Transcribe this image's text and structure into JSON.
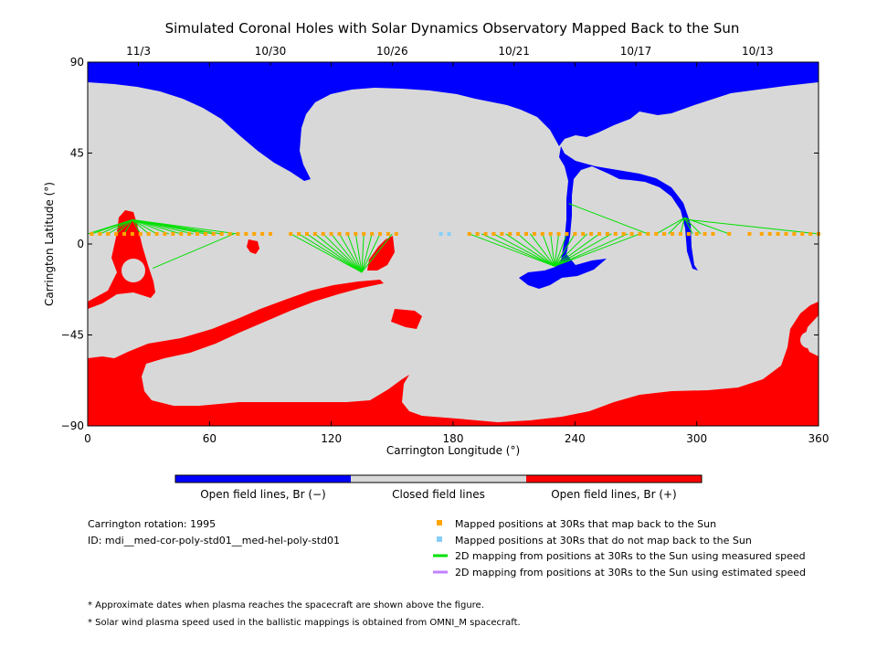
{
  "chart_data": {
    "type": "map",
    "title": "Simulated Coronal Holes with Solar Dynamics Observatory Mapped Back to the Sun",
    "xlabel": "Carrington Longitude (°)",
    "ylabel": "Carrington Latitude (°)",
    "xlim": [
      0,
      360
    ],
    "ylim": [
      -90,
      90
    ],
    "xticks": [
      0,
      60,
      120,
      180,
      240,
      300,
      360
    ],
    "yticks": [
      90,
      45,
      0,
      -45,
      -90
    ],
    "date_ticks": [
      {
        "label": "11/3",
        "lon": 25
      },
      {
        "label": "10/30",
        "lon": 90
      },
      {
        "label": "10/26",
        "lon": 150
      },
      {
        "label": "10/21",
        "lon": 210
      },
      {
        "label": "10/17",
        "lon": 270
      },
      {
        "label": "10/13",
        "lon": 330
      }
    ],
    "colorbar": {
      "colors": [
        "#0000ff",
        "#d8d8d8",
        "#ff0000"
      ],
      "labels": [
        "Open field lines, Br (−)",
        "Closed field lines",
        "Open field lines, Br (+)"
      ]
    },
    "colors": {
      "neg": "#0000ff",
      "closed": "#d8d8d8",
      "pos": "#ff0000",
      "mapped": "#ffa500",
      "unmapped": "#87cefa",
      "measured": "#00e000",
      "estimated": "#c080ff"
    },
    "mapped_lon": [
      2,
      6,
      10,
      14,
      18,
      22,
      26,
      30,
      34,
      38,
      42,
      46,
      50,
      54,
      58,
      62,
      66,
      70,
      74,
      78,
      82,
      86,
      90,
      100,
      104,
      108,
      112,
      116,
      120,
      124,
      128,
      132,
      136,
      140,
      144,
      148,
      152,
      188,
      192,
      196,
      200,
      204,
      208,
      212,
      216,
      220,
      224,
      228,
      232,
      236,
      240,
      244,
      248,
      252,
      256,
      260,
      264,
      268,
      272,
      276,
      280,
      284,
      288,
      292,
      296,
      300,
      304,
      308,
      316,
      326,
      332,
      336,
      340,
      344,
      348,
      352,
      356,
      360
    ],
    "mapped_lat": 5,
    "unmapped_lon": [
      174,
      178
    ],
    "mapping_lines": [
      {
        "footpoint": [
          22,
          12
        ],
        "from": [
          0,
          6,
          2,
          10,
          14,
          18,
          26,
          30,
          34,
          40,
          46,
          52,
          58,
          62,
          66,
          74
        ]
      },
      {
        "footpoint": [
          32,
          -12
        ],
        "from": [
          72
        ]
      },
      {
        "footpoint": [
          135,
          -14
        ],
        "from": [
          100,
          104,
          108,
          112,
          116,
          120,
          124,
          128,
          132,
          136,
          140,
          144,
          150
        ]
      },
      {
        "footpoint": [
          230,
          -11
        ],
        "from": [
          188,
          194,
          200,
          206,
          212,
          218,
          224,
          228,
          232,
          236,
          240,
          246,
          252,
          258,
          266,
          272
        ]
      },
      {
        "footpoint": [
          237,
          20
        ],
        "from": [
          276
        ]
      },
      {
        "footpoint": [
          294,
          13
        ],
        "from": [
          280,
          286,
          292,
          298,
          302,
          316
        ]
      },
      {
        "footpoint": [
          296,
          12
        ],
        "from": [
          360
        ]
      }
    ]
  },
  "info": {
    "rotation": "Carrington rotation: 1995",
    "id": "ID: mdi__med-cor-poly-std01__med-hel-poly-std01"
  },
  "legend": [
    {
      "marker": "square",
      "color": "#ffa500",
      "label": "Mapped positions at 30Rs that map back to the Sun"
    },
    {
      "marker": "square",
      "color": "#87cefa",
      "label": "Mapped positions at 30Rs that do not map back to the Sun"
    },
    {
      "marker": "line",
      "color": "#00e000",
      "label": "2D mapping from positions at 30Rs to the Sun using measured speed"
    },
    {
      "marker": "line",
      "color": "#c080ff",
      "label": "2D mapping from positions at 30Rs to the Sun using estimated speed"
    }
  ],
  "notes": [
    "* Approximate dates when plasma reaches the spacecraft are shown above the figure.",
    "* Solar wind plasma speed used in the ballistic mappings is obtained from OMNI_M spacecraft."
  ]
}
